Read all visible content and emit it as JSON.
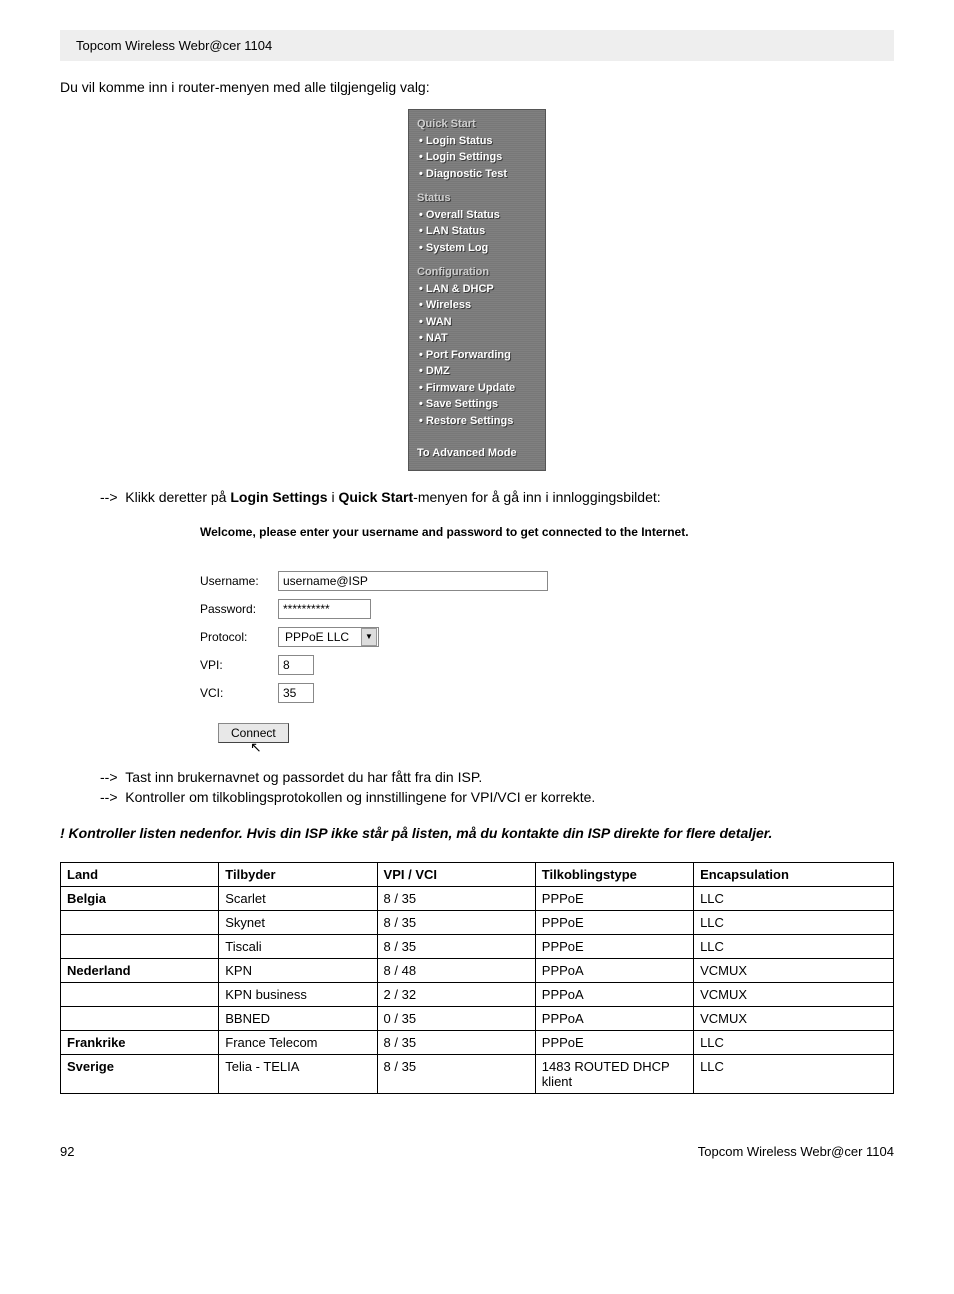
{
  "header": {
    "product": "Topcom Wireless Webr@cer 1104"
  },
  "intro": "Du vil komme inn i router-menyen med alle tilgjengelig valg:",
  "router_menu": {
    "sections": [
      {
        "title": "Quick Start",
        "items": [
          "Login Status",
          "Login Settings",
          "Diagnostic Test"
        ]
      },
      {
        "title": "Status",
        "items": [
          "Overall Status",
          "LAN Status",
          "System Log"
        ]
      },
      {
        "title": "Configuration",
        "items": [
          "LAN & DHCP",
          "Wireless",
          "WAN",
          "NAT",
          "Port Forwarding",
          "DMZ",
          "Firmware Update",
          "Save Settings",
          "Restore Settings"
        ]
      }
    ],
    "footer": "To Advanced Mode"
  },
  "instr1_pre": "Klikk deretter på ",
  "instr1_b1": "Login Settings",
  "instr1_mid": " i ",
  "instr1_b2": "Quick Start",
  "instr1_post": "-menyen for å gå inn i innloggingsbildet:",
  "login": {
    "welcome": "Welcome, please enter your username and password to get connected to the Internet.",
    "labels": {
      "username": "Username:",
      "password": "Password:",
      "protocol": "Protocol:",
      "vpi": "VPI:",
      "vci": "VCI:"
    },
    "values": {
      "username": "username@ISP",
      "password": "**********",
      "protocol": "PPPoE LLC",
      "vpi": "8",
      "vci": "35"
    },
    "connect": "Connect"
  },
  "instr2": "Tast inn brukernavnet og passordet du har fått fra din ISP.",
  "instr3": "Kontroller om tilkoblingsprotokollen og innstillingene for VPI/VCI er korrekte.",
  "warning": "! Kontroller listen nedenfor. Hvis din ISP ikke står på listen, må du kontakte din ISP direkte for flere detaljer.",
  "table": {
    "headers": [
      "Land",
      "Tilbyder",
      "VPI / VCI",
      "Tilkoblingstype",
      "Encapsulation"
    ],
    "rows": [
      {
        "land": "Belgia",
        "land_bold": true,
        "tilbyder": "Scarlet",
        "vpi": "8 / 35",
        "type": "PPPoE",
        "enc": "LLC"
      },
      {
        "land": "",
        "land_bold": false,
        "tilbyder": "Skynet",
        "vpi": "8 / 35",
        "type": "PPPoE",
        "enc": "LLC"
      },
      {
        "land": "",
        "land_bold": false,
        "tilbyder": "Tiscali",
        "vpi": "8 / 35",
        "type": "PPPoE",
        "enc": "LLC"
      },
      {
        "land": "Nederland",
        "land_bold": true,
        "tilbyder": "KPN",
        "vpi": "8 / 48",
        "type": "PPPoA",
        "enc": "VCMUX"
      },
      {
        "land": "",
        "land_bold": false,
        "tilbyder": "KPN business",
        "vpi": "2 / 32",
        "type": "PPPoA",
        "enc": "VCMUX"
      },
      {
        "land": "",
        "land_bold": false,
        "tilbyder": "BBNED",
        "vpi": "0 / 35",
        "type": "PPPoA",
        "enc": "VCMUX"
      },
      {
        "land": "Frankrike",
        "land_bold": true,
        "tilbyder": "France Telecom",
        "vpi": "8 / 35",
        "type": "PPPoE",
        "enc": "LLC"
      },
      {
        "land": "Sverige",
        "land_bold": true,
        "tilbyder": "Telia - TELIA",
        "vpi": "8 / 35",
        "type": "1483 ROUTED DHCP klient",
        "enc": "LLC"
      }
    ]
  },
  "footer": {
    "page": "92",
    "product": "Topcom Wireless Webr@cer 1104"
  },
  "arrow": "-->"
}
